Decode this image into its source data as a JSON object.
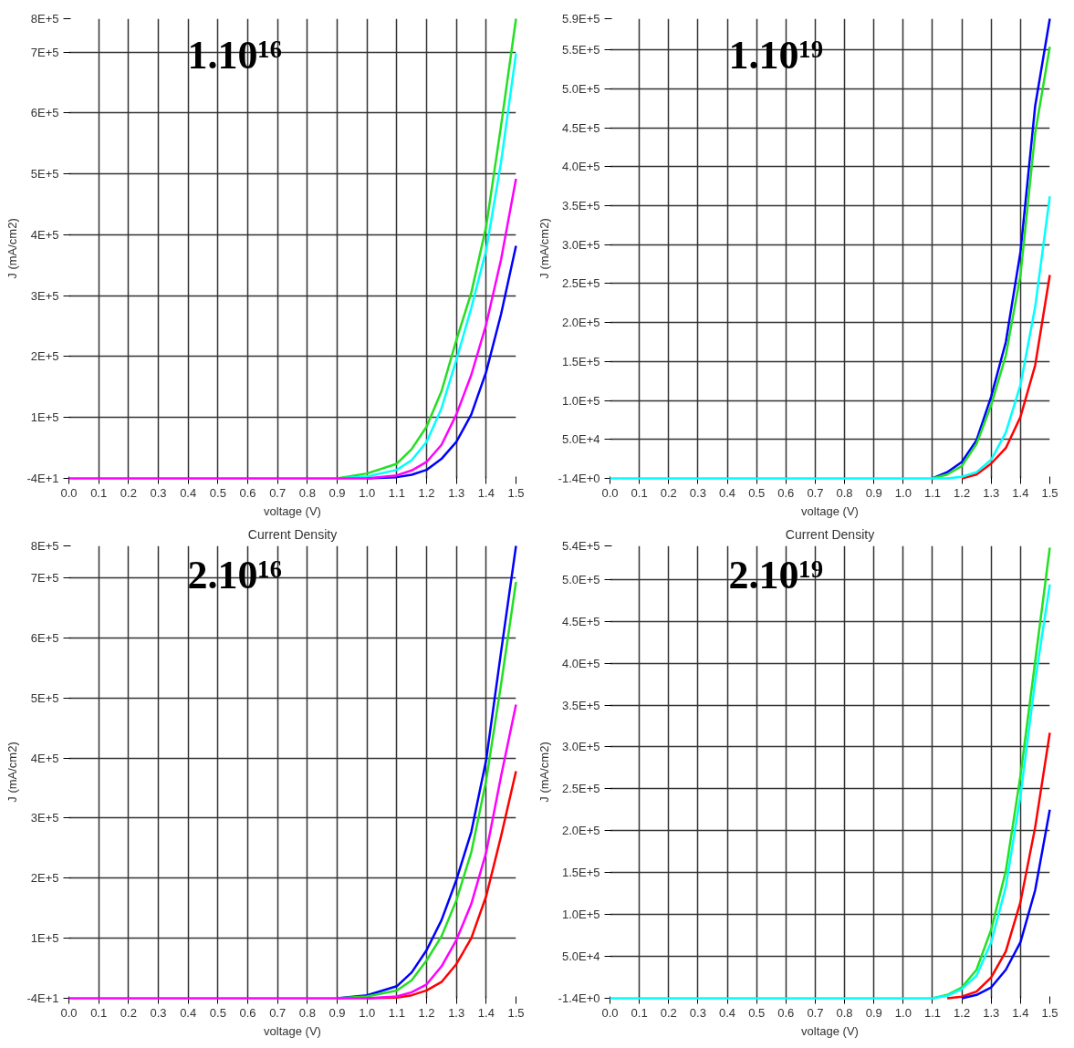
{
  "chart_data": [
    {
      "type": "line",
      "xlabel": "voltage (V)",
      "ylabel": "J (mA/cm2)",
      "annotations": [
        "1.10¹⁶"
      ],
      "grid": true,
      "line_style": "solid",
      "x": [
        0,
        0.8,
        0.9,
        1.0,
        1.1,
        1.15,
        1.2,
        1.25,
        1.3,
        1.35,
        1.4,
        1.45,
        1.5
      ],
      "xlim": [
        0,
        1.5
      ],
      "ylim": [
        -40,
        755000
      ],
      "xticks": [
        {
          "value": 0,
          "label": "0.0"
        },
        {
          "value": 0.1,
          "label": "0.1"
        },
        {
          "value": 0.2,
          "label": "0.2"
        },
        {
          "value": 0.3,
          "label": "0.3"
        },
        {
          "value": 0.4,
          "label": "0.4"
        },
        {
          "value": 0.5,
          "label": "0.5"
        },
        {
          "value": 0.6,
          "label": "0.6"
        },
        {
          "value": 0.7,
          "label": "0.7"
        },
        {
          "value": 0.8,
          "label": "0.8"
        },
        {
          "value": 0.9,
          "label": "0.9"
        },
        {
          "value": 1.0,
          "label": "1.0"
        },
        {
          "value": 1.1,
          "label": "1.1"
        },
        {
          "value": 1.2,
          "label": "1.2"
        },
        {
          "value": 1.3,
          "label": "1.3"
        },
        {
          "value": 1.4,
          "label": "1.4"
        },
        {
          "value": 1.5,
          "label": "1.5"
        }
      ],
      "yticks": [
        {
          "value": -40,
          "label": "-4E+1"
        },
        {
          "value": 100000,
          "label": "1E+5"
        },
        {
          "value": 200000,
          "label": "2E+5"
        },
        {
          "value": 300000,
          "label": "3E+5"
        },
        {
          "value": 400000,
          "label": "4E+5"
        },
        {
          "value": 500000,
          "label": "5E+5"
        },
        {
          "value": 600000,
          "label": "6E+5"
        },
        {
          "value": 700000,
          "label": "7E+5"
        },
        {
          "value": 755000,
          "label": "8E+5"
        }
      ],
      "series": [
        {
          "color": "#22e022",
          "values": [
            null,
            null,
            0,
            8000,
            24000,
            48000,
            85000,
            143000,
            227000,
            305000,
            414000,
            580000,
            755000
          ]
        },
        {
          "color": "#00ffff",
          "values": [
            null,
            null,
            0,
            3000,
            14000,
            30000,
            60000,
            115000,
            195000,
            280000,
            375000,
            520000,
            698000
          ]
        },
        {
          "color": "#0000ff",
          "values": [
            null,
            null,
            null,
            0,
            2000,
            6000,
            14000,
            32000,
            60000,
            105000,
            175000,
            270000,
            382000
          ]
        },
        {
          "color": "#ff00ff",
          "values": [
            0,
            0,
            0,
            0,
            5000,
            13000,
            27000,
            55000,
            105000,
            170000,
            253000,
            360000,
            492000
          ]
        }
      ]
    },
    {
      "type": "line",
      "xlabel": "voltage (V)",
      "ylabel": "J (mA/cm2)",
      "annotations": [
        "1.10¹⁹"
      ],
      "grid": true,
      "line_style": "solid",
      "x": [
        0,
        1.1,
        1.15,
        1.2,
        1.25,
        1.3,
        1.35,
        1.4,
        1.45,
        1.5
      ],
      "xlim": [
        0,
        1.5
      ],
      "ylim": [
        -1.4,
        590000
      ],
      "xticks": [
        {
          "value": 0,
          "label": "0.0"
        },
        {
          "value": 0.1,
          "label": "0.1"
        },
        {
          "value": 0.2,
          "label": "0.2"
        },
        {
          "value": 0.3,
          "label": "0.3"
        },
        {
          "value": 0.4,
          "label": "0.4"
        },
        {
          "value": 0.5,
          "label": "0.5"
        },
        {
          "value": 0.6,
          "label": "0.6"
        },
        {
          "value": 0.7,
          "label": "0.7"
        },
        {
          "value": 0.8,
          "label": "0.8"
        },
        {
          "value": 0.9,
          "label": "0.9"
        },
        {
          "value": 1.0,
          "label": "1.0"
        },
        {
          "value": 1.1,
          "label": "1.1"
        },
        {
          "value": 1.2,
          "label": "1.2"
        },
        {
          "value": 1.3,
          "label": "1.3"
        },
        {
          "value": 1.4,
          "label": "1.4"
        },
        {
          "value": 1.5,
          "label": "1.5"
        }
      ],
      "yticks": [
        {
          "value": -1.4,
          "label": "-1.4E+0"
        },
        {
          "value": 50000,
          "label": "5.0E+4"
        },
        {
          "value": 100000,
          "label": "1.0E+5"
        },
        {
          "value": 150000,
          "label": "1.5E+5"
        },
        {
          "value": 200000,
          "label": "2.0E+5"
        },
        {
          "value": 250000,
          "label": "2.5E+5"
        },
        {
          "value": 300000,
          "label": "3.0E+5"
        },
        {
          "value": 350000,
          "label": "3.5E+5"
        },
        {
          "value": 400000,
          "label": "4.0E+5"
        },
        {
          "value": 450000,
          "label": "4.5E+5"
        },
        {
          "value": 500000,
          "label": "5.0E+5"
        },
        {
          "value": 550000,
          "label": "5.5E+5"
        },
        {
          "value": 590000,
          "label": "5.9E+5"
        }
      ],
      "series": [
        {
          "color": "#0000ff",
          "values": [
            null,
            0,
            8000,
            21000,
            49000,
            105000,
            175000,
            291000,
            478000,
            590000
          ]
        },
        {
          "color": "#22e022",
          "values": [
            null,
            0,
            5000,
            16000,
            44000,
            94000,
            158000,
            261000,
            443000,
            554000
          ]
        },
        {
          "color": "#ff0000",
          "values": [
            null,
            null,
            null,
            0,
            5000,
            19000,
            39000,
            79000,
            145000,
            261000
          ]
        },
        {
          "color": "#00ffff",
          "values": [
            0,
            0,
            0,
            2000,
            8000,
            24000,
            59000,
            120000,
            220000,
            362000
          ]
        }
      ]
    },
    {
      "type": "line",
      "title": "Current Density",
      "xlabel": "voltage (V)",
      "ylabel": "J (mA/cm2)",
      "annotations": [
        "2.10¹⁶"
      ],
      "grid": true,
      "line_style": "solid",
      "x": [
        0,
        0.9,
        1.0,
        1.1,
        1.15,
        1.2,
        1.25,
        1.3,
        1.35,
        1.4,
        1.45,
        1.5
      ],
      "xlim": [
        0,
        1.5
      ],
      "ylim": [
        -40,
        753000
      ],
      "xticks": [
        {
          "value": 0,
          "label": "0.0"
        },
        {
          "value": 0.1,
          "label": "0.1"
        },
        {
          "value": 0.2,
          "label": "0.2"
        },
        {
          "value": 0.3,
          "label": "0.3"
        },
        {
          "value": 0.4,
          "label": "0.4"
        },
        {
          "value": 0.5,
          "label": "0.5"
        },
        {
          "value": 0.6,
          "label": "0.6"
        },
        {
          "value": 0.7,
          "label": "0.7"
        },
        {
          "value": 0.8,
          "label": "0.8"
        },
        {
          "value": 0.9,
          "label": "0.9"
        },
        {
          "value": 1.0,
          "label": "1.0"
        },
        {
          "value": 1.1,
          "label": "1.1"
        },
        {
          "value": 1.2,
          "label": "1.2"
        },
        {
          "value": 1.3,
          "label": "1.3"
        },
        {
          "value": 1.4,
          "label": "1.4"
        },
        {
          "value": 1.5,
          "label": "1.5"
        }
      ],
      "yticks": [
        {
          "value": -40,
          "label": "-4E+1"
        },
        {
          "value": 100000,
          "label": "1E+5"
        },
        {
          "value": 200000,
          "label": "2E+5"
        },
        {
          "value": 300000,
          "label": "3E+5"
        },
        {
          "value": 400000,
          "label": "4E+5"
        },
        {
          "value": 500000,
          "label": "5E+5"
        },
        {
          "value": 600000,
          "label": "6E+5"
        },
        {
          "value": 700000,
          "label": "7E+5"
        },
        {
          "value": 753000,
          "label": "8E+5"
        }
      ],
      "series": [
        {
          "color": "#0000ff",
          "values": [
            null,
            0,
            5000,
            20000,
            43000,
            80000,
            130000,
            197000,
            277000,
            397000,
            577000,
            753000
          ]
        },
        {
          "color": "#22e022",
          "values": [
            null,
            0,
            3000,
            13000,
            30000,
            63000,
            103000,
            163000,
            243000,
            363000,
            523000,
            693000
          ]
        },
        {
          "color": "#ff0000",
          "values": [
            null,
            null,
            0,
            1000,
            5000,
            13000,
            27000,
            57000,
            100000,
            170000,
            270000,
            378000
          ]
        },
        {
          "color": "#ff00ff",
          "values": [
            0,
            0,
            0,
            3000,
            10000,
            23000,
            53000,
            97000,
            157000,
            243000,
            370000,
            489000
          ]
        }
      ]
    },
    {
      "type": "line",
      "title": "Current Density",
      "xlabel": "voltage (V)",
      "ylabel": "J (mA/cm2)",
      "annotations": [
        "2.10¹⁹"
      ],
      "grid": true,
      "line_style": "solid",
      "x": [
        0,
        1.1,
        1.15,
        1.2,
        1.25,
        1.3,
        1.35,
        1.4,
        1.45,
        1.5
      ],
      "xlim": [
        0,
        1.5
      ],
      "ylim": [
        -1.4,
        540000
      ],
      "xticks": [
        {
          "value": 0,
          "label": "0.0"
        },
        {
          "value": 0.1,
          "label": "0.1"
        },
        {
          "value": 0.2,
          "label": "0.2"
        },
        {
          "value": 0.3,
          "label": "0.3"
        },
        {
          "value": 0.4,
          "label": "0.4"
        },
        {
          "value": 0.5,
          "label": "0.5"
        },
        {
          "value": 0.6,
          "label": "0.6"
        },
        {
          "value": 0.7,
          "label": "0.7"
        },
        {
          "value": 0.8,
          "label": "0.8"
        },
        {
          "value": 0.9,
          "label": "0.9"
        },
        {
          "value": 1.0,
          "label": "1.0"
        },
        {
          "value": 1.1,
          "label": "1.1"
        },
        {
          "value": 1.2,
          "label": "1.2"
        },
        {
          "value": 1.3,
          "label": "1.3"
        },
        {
          "value": 1.4,
          "label": "1.4"
        },
        {
          "value": 1.5,
          "label": "1.5"
        }
      ],
      "yticks": [
        {
          "value": -1.4,
          "label": "-1.4E+0"
        },
        {
          "value": 50000,
          "label": "5.0E+4"
        },
        {
          "value": 100000,
          "label": "1.0E+5"
        },
        {
          "value": 150000,
          "label": "1.5E+5"
        },
        {
          "value": 200000,
          "label": "2.0E+5"
        },
        {
          "value": 250000,
          "label": "2.5E+5"
        },
        {
          "value": 300000,
          "label": "3.0E+5"
        },
        {
          "value": 350000,
          "label": "3.5E+5"
        },
        {
          "value": 400000,
          "label": "4.0E+5"
        },
        {
          "value": 450000,
          "label": "4.5E+5"
        },
        {
          "value": 500000,
          "label": "5.0E+5"
        },
        {
          "value": 540000,
          "label": "5.4E+5"
        }
      ],
      "series": [
        {
          "color": "#22e022",
          "values": [
            null,
            0,
            4000,
            13000,
            34000,
            82000,
            152000,
            266000,
            402000,
            538000
          ]
        },
        {
          "color": "#ff0000",
          "values": [
            null,
            null,
            0,
            2000,
            8000,
            25000,
            56000,
            115000,
            204000,
            317000
          ]
        },
        {
          "color": "#0000ff",
          "values": [
            null,
            null,
            null,
            0,
            4000,
            13000,
            34000,
            67000,
            129000,
            225000
          ]
        },
        {
          "color": "#00ffff",
          "values": [
            0,
            0,
            3000,
            11000,
            27000,
            67000,
            133000,
            242000,
            379000,
            494000
          ]
        }
      ]
    }
  ]
}
